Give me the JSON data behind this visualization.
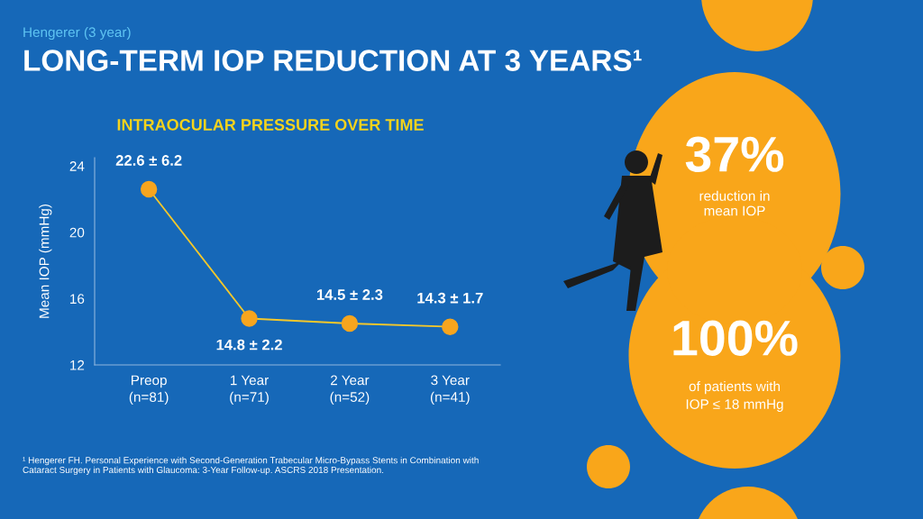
{
  "chart_data": {
    "type": "line",
    "title": "LONG-TERM IOP REDUCTION AT 3 YEARS¹",
    "subtitle": "INTRAOCULAR PRESSURE OVER TIME",
    "ylabel": "Mean IOP (mmHg)",
    "categories": [
      "Preop\n(n=81)",
      "1 Year\n(n=71)",
      "2 Year\n(n=52)",
      "3 Year\n(n=41)"
    ],
    "series": [
      {
        "color": "#f7a51e",
        "values": [
          22.6,
          14.8,
          14.5,
          14.3
        ],
        "value_labels": [
          "22.6 ± 6.2",
          "14.8 ± 2.2",
          "14.5 ± 2.3",
          "14.3 ± 1.7"
        ]
      }
    ],
    "ylim": [
      12,
      24.5
    ],
    "yticks": [
      12,
      16,
      20,
      24
    ],
    "grid": false,
    "marker": "circle",
    "line_style": "solid",
    "annotations": [
      "Hengerer (3 year)",
      "37%",
      "reduction in\nmean IOP",
      "100%",
      "of patients with\nIOP ≤ 18 mmHg",
      "¹ Hengerer FH. Personal Experience with Second-Generation Trabecular Micro-Bypass Stents in Combination with Cataract Surgery in Patients with Glaucoma: 3-Year Follow-up. ASCRS 2018 Presentation."
    ]
  }
}
